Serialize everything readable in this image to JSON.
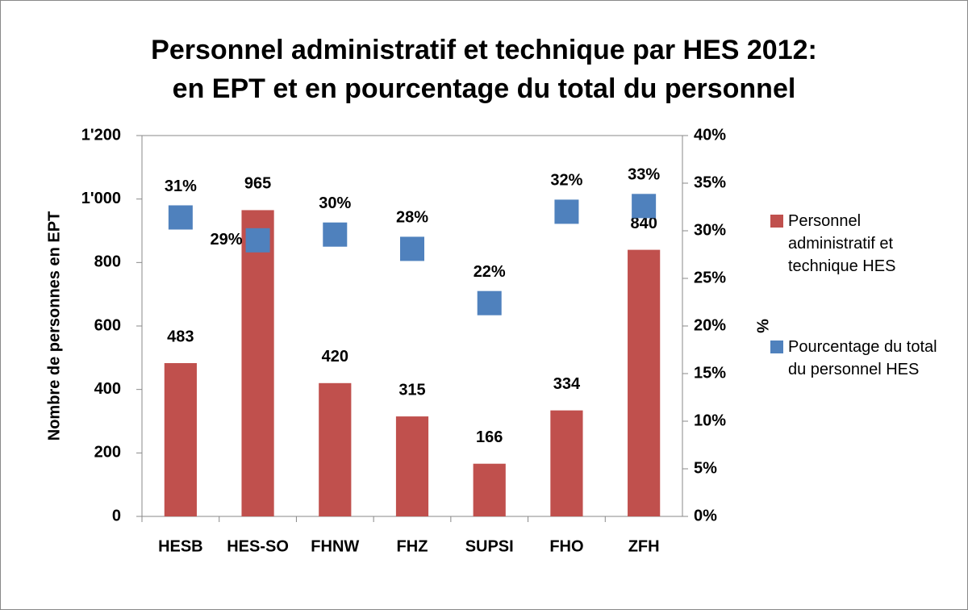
{
  "chart_data": {
    "type": "bar",
    "title": [
      "Personnel administratif et technique  par HES 2012:",
      "en EPT et en pourcentage du total du personnel"
    ],
    "categories": [
      "HESB",
      "HES-SO",
      "FHNW",
      "FHZ",
      "SUPSI",
      "FHO",
      "ZFH"
    ],
    "series": [
      {
        "name": "Personnel administratif et technique HES",
        "color": "#c0504d",
        "type": "bar",
        "values": [
          483,
          965,
          420,
          315,
          166,
          334,
          840
        ]
      },
      {
        "name": "Pourcentage du total du personnel HES",
        "color": "#4f81bd",
        "type": "scatter",
        "axis": "y2",
        "values": [
          31.4,
          29.0,
          29.6,
          28.1,
          22.4,
          32.0,
          32.6
        ],
        "value_labels": [
          "31%",
          "29%",
          "30%",
          "28%",
          "22%",
          "32%",
          "33%"
        ]
      }
    ],
    "ylabel": "Nombre de personnes en EPT",
    "y2label": "%",
    "ylim": [
      0,
      1200
    ],
    "yticks": [
      0,
      200,
      400,
      600,
      800,
      {
        "value": 1000,
        "label": "1'000"
      },
      {
        "value": 1200,
        "label": "1'200"
      }
    ],
    "y2lim": [
      0,
      40
    ],
    "y2ticks": [
      {
        "value": 0,
        "label": "0%"
      },
      {
        "value": 5,
        "label": "5%"
      },
      {
        "value": 10,
        "label": "10%"
      },
      {
        "value": 15,
        "label": "15%"
      },
      {
        "value": 20,
        "label": "20%"
      },
      {
        "value": 25,
        "label": "25%"
      },
      {
        "value": 30,
        "label": "30%"
      },
      {
        "value": 35,
        "label": "35%"
      },
      {
        "value": 40,
        "label": "40%"
      }
    ],
    "legend": "right"
  }
}
